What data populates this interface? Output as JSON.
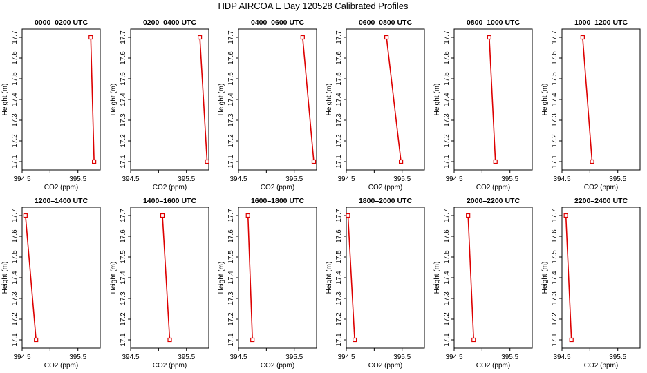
{
  "title": "HDP AIRCOA E  Day 120528  Calibrated Profiles",
  "colors": {
    "profile": "#dd0000",
    "axis": "#000000"
  },
  "chart_data": [
    {
      "type": "line",
      "title": "0000–0200 UTC",
      "xlabel": "CO2 (ppm)",
      "ylabel": "Height (m)",
      "xlim": [
        394.5,
        395.9
      ],
      "ylim": [
        17.08,
        17.72
      ],
      "xticks": [
        "394.5",
        "395.5"
      ],
      "yticks": [
        "17.1",
        "17.2",
        "17.3",
        "17.4",
        "17.5",
        "17.6",
        "17.7"
      ],
      "x": [
        395.73,
        395.79
      ],
      "y": [
        17.7,
        17.1
      ]
    },
    {
      "type": "line",
      "title": "0200–0400 UTC",
      "xlabel": "CO2 (ppm)",
      "ylabel": "Height (m)",
      "xlim": [
        394.5,
        395.9
      ],
      "ylim": [
        17.08,
        17.72
      ],
      "xticks": [
        "394.5",
        "395.5"
      ],
      "yticks": [
        "17.1",
        "17.2",
        "17.3",
        "17.4",
        "17.5",
        "17.6",
        "17.7"
      ],
      "x": [
        395.74,
        395.87
      ],
      "y": [
        17.7,
        17.1
      ]
    },
    {
      "type": "line",
      "title": "0400–0600 UTC",
      "xlabel": "CO2 (ppm)",
      "ylabel": "Height (m)",
      "xlim": [
        394.5,
        395.9
      ],
      "ylim": [
        17.08,
        17.72
      ],
      "xticks": [
        "394.5",
        "395.5"
      ],
      "yticks": [
        "17.1",
        "17.2",
        "17.3",
        "17.4",
        "17.5",
        "17.6",
        "17.7"
      ],
      "x": [
        395.65,
        395.85
      ],
      "y": [
        17.7,
        17.1
      ]
    },
    {
      "type": "line",
      "title": "0600–0800 UTC",
      "xlabel": "CO2 (ppm)",
      "ylabel": "Height (m)",
      "xlim": [
        394.5,
        395.9
      ],
      "ylim": [
        17.08,
        17.72
      ],
      "xticks": [
        "394.5",
        "395.5"
      ],
      "yticks": [
        "17.1",
        "17.2",
        "17.3",
        "17.4",
        "17.5",
        "17.6",
        "17.7"
      ],
      "x": [
        395.22,
        395.48
      ],
      "y": [
        17.7,
        17.1
      ]
    },
    {
      "type": "line",
      "title": "0800–1000 UTC",
      "xlabel": "CO2 (ppm)",
      "ylabel": "Height (m)",
      "xlim": [
        394.5,
        395.9
      ],
      "ylim": [
        17.08,
        17.72
      ],
      "xticks": [
        "394.5",
        "395.5"
      ],
      "yticks": [
        "17.1",
        "17.2",
        "17.3",
        "17.4",
        "17.5",
        "17.6",
        "17.7"
      ],
      "x": [
        395.13,
        395.24
      ],
      "y": [
        17.7,
        17.1
      ]
    },
    {
      "type": "line",
      "title": "1000–1200 UTC",
      "xlabel": "CO2 (ppm)",
      "ylabel": "Height (m)",
      "xlim": [
        394.5,
        395.9
      ],
      "ylim": [
        17.08,
        17.72
      ],
      "xticks": [
        "394.5",
        "395.5"
      ],
      "yticks": [
        "17.1",
        "17.2",
        "17.3",
        "17.4",
        "17.5",
        "17.6",
        "17.7"
      ],
      "x": [
        394.87,
        395.04
      ],
      "y": [
        17.7,
        17.1
      ]
    },
    {
      "type": "line",
      "title": "1200–1400 UTC",
      "xlabel": "CO2 (ppm)",
      "ylabel": "Height (m)",
      "xlim": [
        394.5,
        395.9
      ],
      "ylim": [
        17.08,
        17.72
      ],
      "xticks": [
        "394.5",
        "395.5"
      ],
      "yticks": [
        "17.1",
        "17.2",
        "17.3",
        "17.4",
        "17.5",
        "17.6",
        "17.7"
      ],
      "x": [
        394.56,
        394.75
      ],
      "y": [
        17.7,
        17.1
      ]
    },
    {
      "type": "line",
      "title": "1400–1600 UTC",
      "xlabel": "CO2 (ppm)",
      "ylabel": "Height (m)",
      "xlim": [
        394.5,
        395.9
      ],
      "ylim": [
        17.08,
        17.72
      ],
      "xticks": [
        "394.5",
        "395.5"
      ],
      "yticks": [
        "17.1",
        "17.2",
        "17.3",
        "17.4",
        "17.5",
        "17.6",
        "17.7"
      ],
      "x": [
        395.07,
        395.2
      ],
      "y": [
        17.7,
        17.1
      ]
    },
    {
      "type": "line",
      "title": "1600–1800 UTC",
      "xlabel": "CO2 (ppm)",
      "ylabel": "Height (m)",
      "xlim": [
        394.5,
        395.9
      ],
      "ylim": [
        17.08,
        17.72
      ],
      "xticks": [
        "394.5",
        "395.5"
      ],
      "yticks": [
        "17.1",
        "17.2",
        "17.3",
        "17.4",
        "17.5",
        "17.6",
        "17.7"
      ],
      "x": [
        394.67,
        394.75
      ],
      "y": [
        17.7,
        17.1
      ]
    },
    {
      "type": "line",
      "title": "1800–2000 UTC",
      "xlabel": "CO2 (ppm)",
      "ylabel": "Height (m)",
      "xlim": [
        394.5,
        395.9
      ],
      "ylim": [
        17.08,
        17.72
      ],
      "xticks": [
        "394.5",
        "395.5"
      ],
      "yticks": [
        "17.1",
        "17.2",
        "17.3",
        "17.4",
        "17.5",
        "17.6",
        "17.7"
      ],
      "x": [
        394.53,
        394.65
      ],
      "y": [
        17.7,
        17.1
      ]
    },
    {
      "type": "line",
      "title": "2000–2200 UTC",
      "xlabel": "CO2 (ppm)",
      "ylabel": "Height (m)",
      "xlim": [
        394.5,
        395.9
      ],
      "ylim": [
        17.08,
        17.72
      ],
      "xticks": [
        "394.5",
        "395.5"
      ],
      "yticks": [
        "17.1",
        "17.2",
        "17.3",
        "17.4",
        "17.5",
        "17.6",
        "17.7"
      ],
      "x": [
        394.75,
        394.85
      ],
      "y": [
        17.7,
        17.1
      ]
    },
    {
      "type": "line",
      "title": "2200–2400 UTC",
      "xlabel": "CO2 (ppm)",
      "ylabel": "Height (m)",
      "xlim": [
        394.5,
        395.9
      ],
      "ylim": [
        17.08,
        17.72
      ],
      "xticks": [
        "394.5",
        "395.5"
      ],
      "yticks": [
        "17.1",
        "17.2",
        "17.3",
        "17.4",
        "17.5",
        "17.6",
        "17.7"
      ],
      "x": [
        394.57,
        394.67
      ],
      "y": [
        17.7,
        17.1
      ]
    }
  ]
}
